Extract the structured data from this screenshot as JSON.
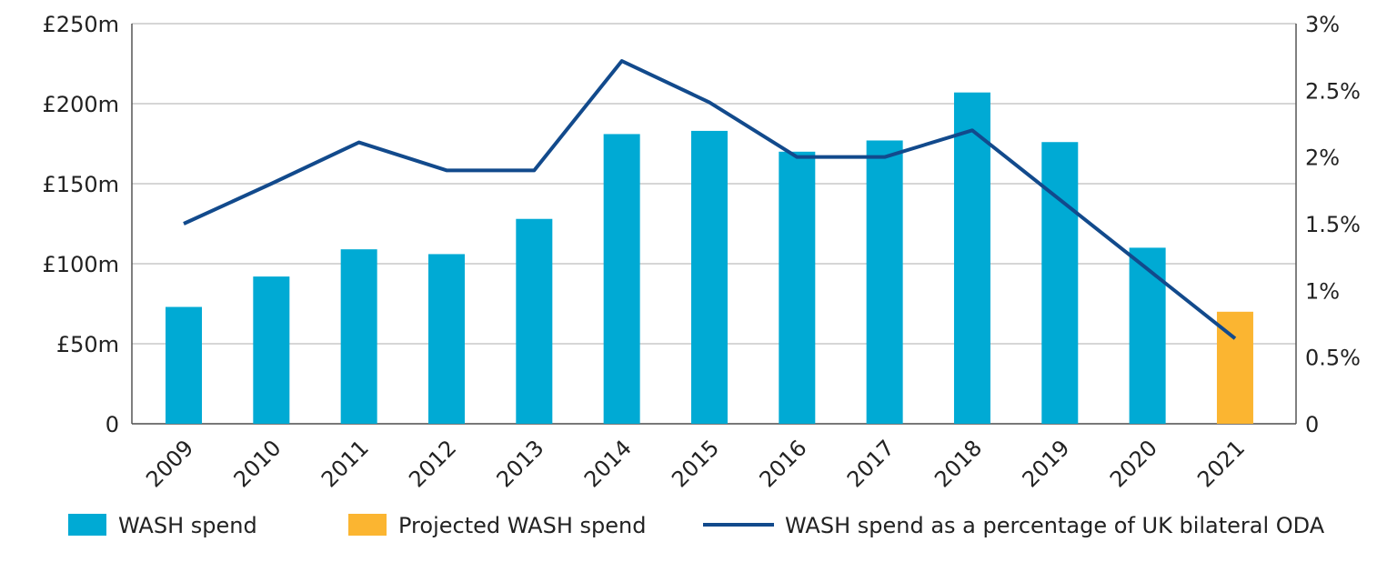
{
  "chart_data": {
    "type": "bar",
    "categories": [
      "2009",
      "2010",
      "2011",
      "2012",
      "2013",
      "2014",
      "2015",
      "2016",
      "2017",
      "2018",
      "2019",
      "2020",
      "2021"
    ],
    "series": [
      {
        "name": "WASH spend",
        "type": "bar",
        "axis": "left",
        "color": "#00AAD4",
        "values": [
          73,
          92,
          109,
          106,
          128,
          181,
          183,
          170,
          177,
          207,
          176,
          110,
          null
        ]
      },
      {
        "name": "Projected WASH spend",
        "type": "bar",
        "axis": "left",
        "color": "#FBB531",
        "values": [
          null,
          null,
          null,
          null,
          null,
          null,
          null,
          null,
          null,
          null,
          null,
          null,
          70
        ]
      },
      {
        "name": "WASH spend as a percentage of UK bilateral ODA",
        "type": "line",
        "axis": "right",
        "color": "#124A8C",
        "values": [
          1.5,
          1.8,
          2.11,
          1.9,
          1.9,
          2.72,
          2.41,
          2.0,
          2.0,
          2.2,
          1.68,
          1.16,
          0.64
        ]
      }
    ],
    "ylim": [
      0,
      250
    ],
    "y2lim": [
      0,
      3
    ],
    "yticks": [
      "0",
      "£50m",
      "£100m",
      "£150m",
      "£200m",
      "£250m"
    ],
    "y2ticks": [
      "0",
      "0.5%",
      "1%",
      "1.5%",
      "2%",
      "2.5%",
      "3%"
    ],
    "grid": true,
    "legend_position": "bottom"
  }
}
